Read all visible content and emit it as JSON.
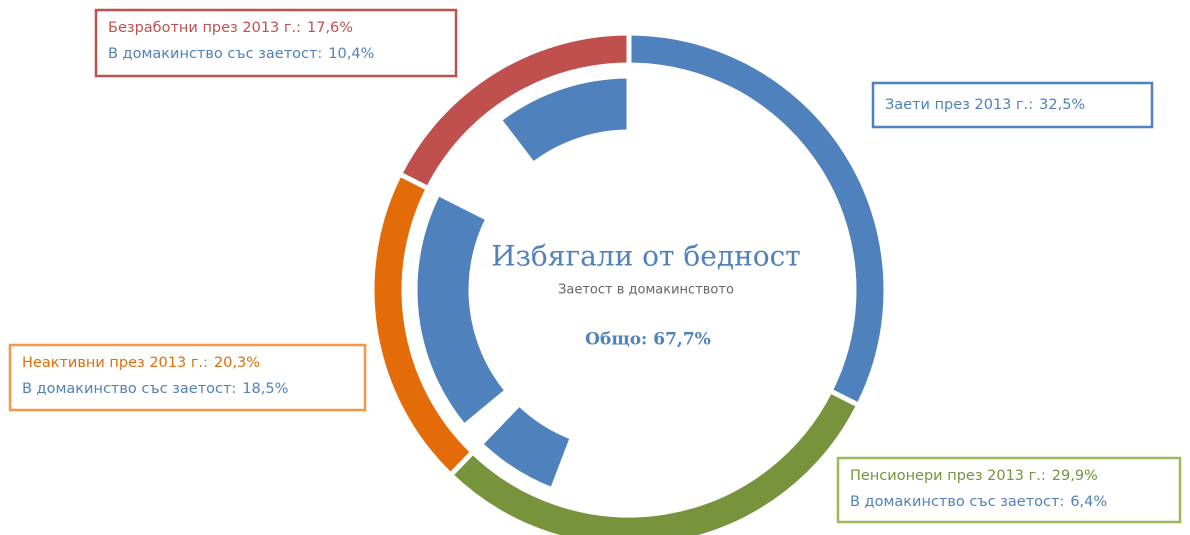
{
  "chart_data": {
    "type": "donut",
    "title": "Избягали от бедност",
    "subtitle": "Заетост в домакинството",
    "total_label": "Общо: 67,7%",
    "categories": [
      "Заети през 2013 г.:",
      "Пенсионери през 2013 г.:",
      "Неактивни през 2013 г.:",
      "Безработни през 2013 г.:"
    ],
    "values": [
      32.5,
      29.9,
      20.3,
      17.6
    ],
    "value_labels": [
      "32,5%",
      "29,9%",
      "20,3%",
      "17,6%"
    ],
    "colors": [
      "#4f81bd",
      "#77933c",
      "#e36c09",
      "#c0504d"
    ],
    "inner": {
      "name": "В домакинство със заетост:",
      "values": [
        null,
        6.4,
        18.5,
        10.4
      ],
      "value_labels": [
        null,
        "6,4%",
        "18,5%",
        "10,4%"
      ],
      "color": "#4f81bd"
    }
  }
}
